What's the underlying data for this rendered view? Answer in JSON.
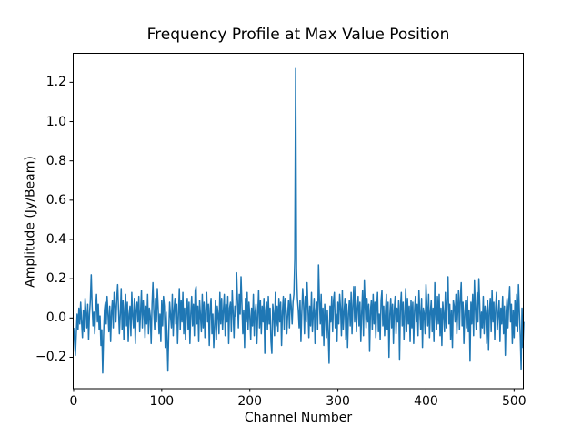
{
  "figure": {
    "background": "#ffffff",
    "frame_color": "#000000"
  },
  "chart_data": {
    "type": "line",
    "title": "Frequency Profile at Max Value Position",
    "xlabel": "Channel Number",
    "ylabel": "Amplitude (Jy/Beam)",
    "legend": null,
    "grid": false,
    "line_color": "#1f77b4",
    "line_width": 1.5,
    "xlim": [
      -1,
      511
    ],
    "ylim": [
      -0.36,
      1.35
    ],
    "xtick_values": [
      0,
      100,
      200,
      300,
      400,
      500
    ],
    "xtick_labels": [
      "0",
      "100",
      "200",
      "300",
      "400",
      "500"
    ],
    "ytick_values": [
      -0.2,
      0.0,
      0.2,
      0.4,
      0.6,
      0.8,
      1.0,
      1.2
    ],
    "ytick_labels": [
      "−0.2",
      "0.0",
      "0.2",
      "0.4",
      "0.6",
      "0.8",
      "1.0",
      "1.2"
    ],
    "peak": {
      "channel": 252,
      "amplitude": 1.27
    },
    "x_start": 0,
    "x_step": 1,
    "y": [
      -0.05,
      -0.12,
      -0.19,
      -0.08,
      0.02,
      -0.06,
      0.05,
      -0.03,
      0.08,
      -0.02,
      -0.1,
      0.04,
      -0.07,
      0.1,
      0.03,
      -0.05,
      0.07,
      -0.11,
      0.02,
      0.09,
      0.22,
      0.06,
      -0.04,
      0.03,
      -0.08,
      0.05,
      0.12,
      -0.02,
      0.07,
      -0.06,
      0.01,
      -0.14,
      -0.06,
      -0.28,
      -0.09,
      0.04,
      0.08,
      -0.03,
      0.11,
      0.02,
      -0.07,
      0.06,
      -0.12,
      0.03,
      0.09,
      -0.05,
      0.13,
      0.07,
      -0.02,
      0.1,
      0.17,
      0.04,
      -0.08,
      0.02,
      0.15,
      -0.06,
      0.09,
      -0.11,
      0.05,
      0.12,
      -0.04,
      0.08,
      -0.12,
      0.02,
      0.06,
      -0.09,
      0.13,
      0.01,
      -0.05,
      0.1,
      -0.13,
      0.04,
      0.08,
      -0.02,
      0.11,
      -0.07,
      0.03,
      0.14,
      -0.05,
      0.09,
      0.02,
      -0.1,
      0.06,
      -0.03,
      0.12,
      -0.08,
      0.05,
      0.01,
      -0.13,
      0.07,
      0.18,
      0.03,
      -0.06,
      0.1,
      -0.02,
      0.15,
      0.05,
      -0.08,
      0.02,
      -0.12,
      0.09,
      -0.04,
      0.11,
      0.06,
      -0.15,
      0.03,
      -0.1,
      -0.27,
      -0.07,
      0.08,
      0.01,
      -0.05,
      0.12,
      -0.09,
      0.04,
      0.1,
      -0.03,
      0.07,
      -0.13,
      0.02,
      0.15,
      -0.06,
      0.09,
      -0.02,
      0.13,
      -0.08,
      0.05,
      -0.11,
      0.03,
      0.1,
      -0.06,
      0.08,
      -0.13,
      0.02,
      0.11,
      -0.04,
      0.07,
      -0.09,
      0.14,
      0.16,
      -0.03,
      0.06,
      -0.12,
      0.09,
      0.01,
      -0.07,
      0.12,
      -0.05,
      0.08,
      -0.1,
      0.04,
      0.13,
      -0.02,
      0.07,
      -0.14,
      0.05,
      0.1,
      -0.08,
      0.02,
      -0.15,
      -0.04,
      0.09,
      -0.11,
      0.06,
      0.02,
      -0.08,
      0.13,
      -0.03,
      0.1,
      -0.06,
      0.04,
      0.12,
      -0.09,
      0.07,
      -0.02,
      0.11,
      -0.13,
      0.05,
      0.08,
      -0.07,
      0.14,
      0.03,
      -0.1,
      0.06,
      0.01,
      0.23,
      0.09,
      -0.05,
      0.12,
      0.02,
      0.21,
      0.07,
      -0.08,
      0.04,
      -0.15,
      0.1,
      -0.02,
      0.13,
      -0.06,
      0.08,
      0.01,
      -0.11,
      0.05,
      -0.04,
      0.12,
      -0.09,
      0.03,
      0.07,
      -0.13,
      0.02,
      0.14,
      -0.05,
      0.09,
      -0.08,
      0.06,
      -0.02,
      0.1,
      -0.18,
      0.04,
      0.08,
      -0.06,
      0.11,
      -0.03,
      0.05,
      -0.12,
      -0.18,
      0.07,
      0.02,
      -0.09,
      0.13,
      -0.04,
      0.06,
      -0.07,
      0.1,
      -0.02,
      0.08,
      -0.14,
      0.03,
      0.11,
      -0.06,
      0.1,
      0.05,
      -0.08,
      0.02,
      0.09,
      -0.05,
      0.12,
      0.06,
      -0.03,
      0.08,
      0.12,
      0.3,
      1.27,
      0.25,
      0.1,
      0.04,
      -0.05,
      0.09,
      -0.12,
      0.03,
      0.15,
      0.07,
      -0.08,
      0.11,
      -0.02,
      0.18,
      0.05,
      -0.1,
      0.06,
      -0.04,
      0.13,
      -0.07,
      0.02,
      0.1,
      -0.13,
      0.04,
      0.08,
      -0.06,
      0.27,
      0.09,
      -0.03,
      0.12,
      -0.09,
      0.05,
      -0.14,
      0.07,
      0.01,
      -0.1,
      0.04,
      -0.08,
      -0.23,
      0.06,
      -0.02,
      0.11,
      -0.07,
      0.09,
      0.13,
      -0.05,
      0.02,
      -0.12,
      0.08,
      -0.03,
      0.12,
      0.05,
      -0.09,
      0.14,
      -0.06,
      0.03,
      0.1,
      -0.11,
      0.07,
      -0.15,
      0.02,
      0.09,
      -0.04,
      0.13,
      -0.08,
      0.06,
      0.16,
      -0.02,
      0.16,
      -0.07,
      0.05,
      0.11,
      -0.04,
      0.08,
      -0.12,
      0.03,
      0.14,
      -0.09,
      0.19,
      0.06,
      -0.05,
      0.1,
      -0.02,
      0.07,
      -0.17,
      0.04,
      0.09,
      -0.06,
      0.12,
      -0.03,
      0.08,
      -0.1,
      0.05,
      0.13,
      -0.07,
      0.02,
      -0.11,
      0.09,
      0.14,
      -0.04,
      0.06,
      -0.09,
      0.03,
      0.12,
      -0.06,
      0.08,
      -0.2,
      0.02,
      0.1,
      -0.05,
      0.07,
      -0.13,
      0.04,
      0.11,
      -0.08,
      0.05,
      -0.02,
      0.09,
      -0.21,
      0.06,
      0.13,
      -0.04,
      0.08,
      -0.11,
      0.02,
      0.15,
      -0.07,
      0.1,
      -0.03,
      0.06,
      -0.12,
      0.09,
      -0.05,
      0.08,
      -0.13,
      0.04,
      0.11,
      -0.02,
      0.07,
      -0.09,
      0.14,
      0.03,
      -0.06,
      0.1,
      -0.15,
      0.05,
      0.02,
      -0.08,
      0.17,
      0.06,
      -0.04,
      0.12,
      -0.1,
      0.03,
      0.09,
      -0.07,
      0.05,
      -0.12,
      0.18,
      0.02,
      -0.06,
      0.11,
      -0.03,
      0.12,
      -0.09,
      0.05,
      -0.14,
      0.08,
      0.02,
      -0.07,
      0.13,
      -0.05,
      0.1,
      0.21,
      -0.03,
      0.07,
      -0.11,
      0.04,
      -0.15,
      0.09,
      0.06,
      -0.02,
      0.12,
      -0.08,
      0.03,
      0.14,
      -0.06,
      0.1,
      0.18,
      -0.04,
      0.08,
      -0.13,
      0.02,
      0.09,
      -0.05,
      0.11,
      -0.07,
      0.04,
      -0.22,
      0.08,
      -0.03,
      0.12,
      -0.09,
      0.19,
      0.05,
      -0.06,
      0.13,
      -0.02,
      0.2,
      0.07,
      -0.1,
      0.03,
      -0.05,
      0.11,
      -0.08,
      0.06,
      0.02,
      -0.13,
      0.09,
      -0.16,
      0.04,
      0.1,
      -0.07,
      0.14,
      -0.02,
      0.08,
      -0.11,
      0.05,
      0.13,
      -0.06,
      0.02,
      0.09,
      -0.12,
      0.05,
      -0.03,
      0.11,
      -0.08,
      0.06,
      -0.19,
      0.03,
      0.1,
      -0.05,
      0.08,
      0.16,
      -0.02,
      0.07,
      -0.13,
      0.04,
      -0.1,
      0.09,
      -0.04,
      0.12,
      -0.07,
      0.17,
      0.03,
      -0.09,
      -0.26,
      0.05,
      -0.15,
      -0.02
    ]
  }
}
